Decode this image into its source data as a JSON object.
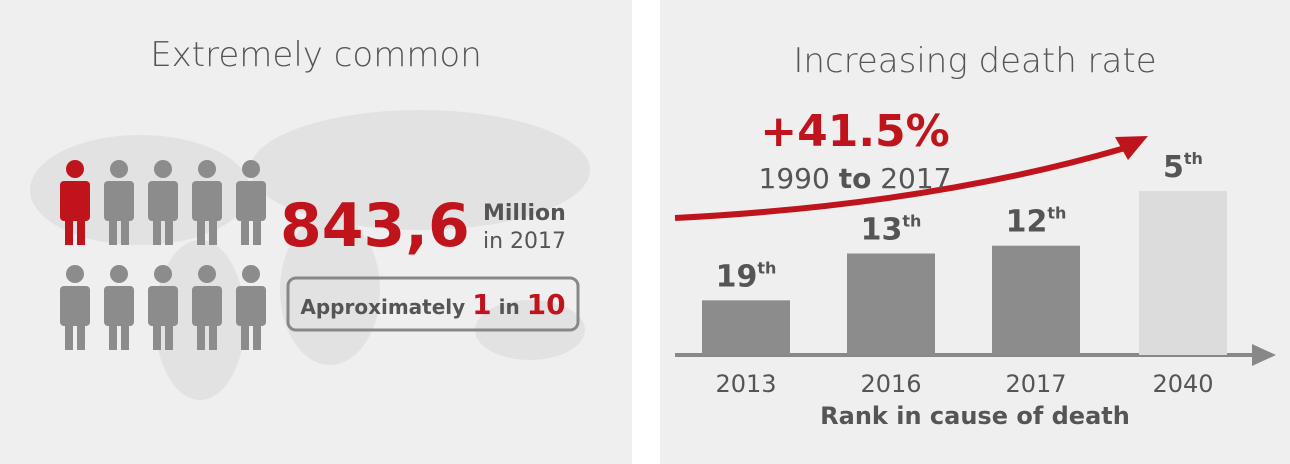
{
  "left": {
    "title": "Extremely common",
    "figure": "843,6",
    "unit": "Million",
    "year": "in 2017",
    "ratio": {
      "prefix": "Approximately",
      "numerator": "1",
      "middle": "in",
      "denominator": "10"
    }
  },
  "chart_data": {
    "type": "bar",
    "title": "Increasing death rate",
    "annotation": {
      "change": "+41.5%",
      "period_start": "1990",
      "period_word": "to",
      "period_end": "2017"
    },
    "categories": [
      "2013",
      "2016",
      "2017",
      "2040"
    ],
    "values": [
      19,
      13,
      12,
      5
    ],
    "value_labels": [
      "19th",
      "13th",
      "12th",
      "5th"
    ],
    "colors": [
      "#8c8c8c",
      "#8c8c8c",
      "#8c8c8c",
      "#dcdcdc"
    ],
    "ylim": [
      26,
      0
    ],
    "xlabel": "Rank in cause of death"
  }
}
